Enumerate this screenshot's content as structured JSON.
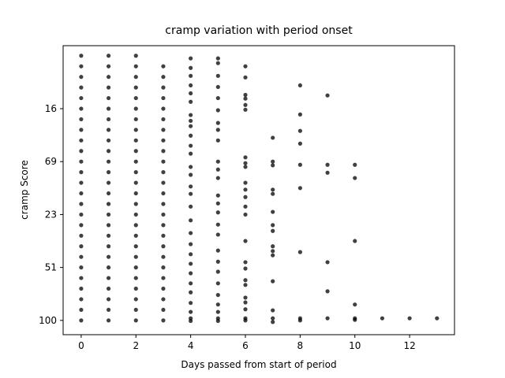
{
  "chart_data": {
    "type": "scatter",
    "title": "cramp variation with period onset",
    "x_label": "Days passed from start of period",
    "y_label": "cramp Score",
    "color": "#000000",
    "xlim": [
      -0.66,
      13.64
    ],
    "xticks": [
      0,
      2,
      4,
      6,
      8,
      10,
      12
    ],
    "ylim": [
      -0.27,
      5.19
    ],
    "yticks": [
      {
        "value": 0,
        "label": "100"
      },
      {
        "value": 1,
        "label": "51"
      },
      {
        "value": 2,
        "label": "23"
      },
      {
        "value": 3,
        "label": "69"
      },
      {
        "value": 4,
        "label": "16"
      }
    ],
    "points": [
      [
        0,
        0
      ],
      [
        0,
        0.2
      ],
      [
        0,
        0.4
      ],
      [
        0,
        0.6
      ],
      [
        0,
        0.8
      ],
      [
        0,
        1
      ],
      [
        0,
        1.2
      ],
      [
        0,
        1.4
      ],
      [
        0,
        1.6
      ],
      [
        0,
        1.8
      ],
      [
        0,
        2
      ],
      [
        0,
        2.2
      ],
      [
        0,
        2.4
      ],
      [
        0,
        2.6
      ],
      [
        0,
        2.8
      ],
      [
        0,
        3
      ],
      [
        0,
        3.2
      ],
      [
        0,
        3.4
      ],
      [
        0,
        3.6
      ],
      [
        0,
        3.8
      ],
      [
        0,
        4
      ],
      [
        0,
        4.2
      ],
      [
        0,
        4.4
      ],
      [
        0,
        4.6
      ],
      [
        0,
        4.8
      ],
      [
        0,
        5
      ],
      [
        1,
        0
      ],
      [
        1,
        0.2
      ],
      [
        1,
        0.4
      ],
      [
        1,
        0.6
      ],
      [
        1,
        0.8
      ],
      [
        1,
        1
      ],
      [
        1,
        1.2
      ],
      [
        1,
        1.4
      ],
      [
        1,
        1.6
      ],
      [
        1,
        1.8
      ],
      [
        1,
        2
      ],
      [
        1,
        2.2
      ],
      [
        1,
        2.4
      ],
      [
        1,
        2.6
      ],
      [
        1,
        2.8
      ],
      [
        1,
        3
      ],
      [
        1,
        3.2
      ],
      [
        1,
        3.4
      ],
      [
        1,
        3.6
      ],
      [
        1,
        3.8
      ],
      [
        1,
        4
      ],
      [
        1,
        4.2
      ],
      [
        1,
        4.4
      ],
      [
        1,
        4.6
      ],
      [
        1,
        4.8
      ],
      [
        1,
        5
      ],
      [
        2,
        0
      ],
      [
        2,
        0.2
      ],
      [
        2,
        0.4
      ],
      [
        2,
        0.6
      ],
      [
        2,
        0.8
      ],
      [
        2,
        1
      ],
      [
        2,
        1.2
      ],
      [
        2,
        1.4
      ],
      [
        2,
        1.6
      ],
      [
        2,
        1.8
      ],
      [
        2,
        2
      ],
      [
        2,
        2.2
      ],
      [
        2,
        2.4
      ],
      [
        2,
        2.6
      ],
      [
        2,
        2.8
      ],
      [
        2,
        3
      ],
      [
        2,
        3.2
      ],
      [
        2,
        3.4
      ],
      [
        2,
        3.6
      ],
      [
        2,
        3.8
      ],
      [
        2,
        4
      ],
      [
        2,
        4.2
      ],
      [
        2,
        4.4
      ],
      [
        2,
        4.6
      ],
      [
        2,
        4.8
      ],
      [
        2,
        5
      ],
      [
        3,
        0
      ],
      [
        3,
        0.2
      ],
      [
        3,
        0.4
      ],
      [
        3,
        0.6
      ],
      [
        3,
        0.8
      ],
      [
        3,
        1
      ],
      [
        3,
        1.2
      ],
      [
        3,
        1.4
      ],
      [
        3,
        1.6
      ],
      [
        3,
        1.8
      ],
      [
        3,
        2
      ],
      [
        3,
        2.2
      ],
      [
        3,
        2.4
      ],
      [
        3,
        2.6
      ],
      [
        3,
        2.8
      ],
      [
        3,
        3
      ],
      [
        3,
        3.2
      ],
      [
        3,
        3.4
      ],
      [
        3,
        3.6
      ],
      [
        3,
        3.8
      ],
      [
        3,
        4
      ],
      [
        3,
        4.2
      ],
      [
        3,
        4.4
      ],
      [
        3,
        4.6
      ],
      [
        3,
        4.8
      ],
      [
        4,
        4.95
      ],
      [
        4,
        4.77
      ],
      [
        4,
        4.62
      ],
      [
        4,
        4.44
      ],
      [
        4,
        4.29
      ],
      [
        4,
        4.13
      ],
      [
        4,
        3.88
      ],
      [
        4,
        3.77
      ],
      [
        4,
        3.67
      ],
      [
        4,
        3.49
      ],
      [
        4,
        3.3
      ],
      [
        4,
        3.15
      ],
      [
        4,
        2.9
      ],
      [
        4,
        2.75
      ],
      [
        4,
        2.53
      ],
      [
        4,
        2.39
      ],
      [
        4,
        2.15
      ],
      [
        4,
        1.89
      ],
      [
        4,
        1.65
      ],
      [
        4,
        1.44
      ],
      [
        4,
        1.25
      ],
      [
        4,
        1.07
      ],
      [
        4,
        0.89
      ],
      [
        4,
        0.7
      ],
      [
        4,
        0.53
      ],
      [
        4,
        0.33
      ],
      [
        4,
        0.16
      ],
      [
        4,
        0.04
      ],
      [
        4,
        -0.01
      ],
      [
        5,
        4.95
      ],
      [
        5,
        4.86
      ],
      [
        5,
        4.62
      ],
      [
        5,
        4.41
      ],
      [
        5,
        4.2
      ],
      [
        5,
        3.97
      ],
      [
        5,
        3.73
      ],
      [
        5,
        3.6
      ],
      [
        5,
        3.4
      ],
      [
        5,
        3.0
      ],
      [
        5,
        2.85
      ],
      [
        5,
        2.69
      ],
      [
        5,
        2.36
      ],
      [
        5,
        2.21
      ],
      [
        5,
        2.04
      ],
      [
        5,
        1.81
      ],
      [
        5,
        1.62
      ],
      [
        5,
        1.32
      ],
      [
        5,
        1.11
      ],
      [
        5,
        0.92
      ],
      [
        5,
        0.7
      ],
      [
        5,
        0.48
      ],
      [
        5,
        0.3
      ],
      [
        5,
        0.16
      ],
      [
        5,
        0.04
      ],
      [
        5,
        -0.01
      ],
      [
        6,
        4.8
      ],
      [
        6,
        4.59
      ],
      [
        6,
        4.26
      ],
      [
        6,
        4.19
      ],
      [
        6,
        4.07
      ],
      [
        6,
        3.98
      ],
      [
        6,
        3.08
      ],
      [
        6,
        2.97
      ],
      [
        6,
        2.9
      ],
      [
        6,
        2.6
      ],
      [
        6,
        2.47
      ],
      [
        6,
        2.33
      ],
      [
        6,
        2.15
      ],
      [
        6,
        2.0
      ],
      [
        6,
        1.5
      ],
      [
        6,
        1.1
      ],
      [
        6,
        0.98
      ],
      [
        6,
        0.76
      ],
      [
        6,
        0.67
      ],
      [
        6,
        0.43
      ],
      [
        6,
        0.34
      ],
      [
        6,
        0.21
      ],
      [
        6,
        0.04
      ],
      [
        6,
        0
      ],
      [
        7,
        3.45
      ],
      [
        7,
        3.0
      ],
      [
        7,
        2.93
      ],
      [
        7,
        2.47
      ],
      [
        7,
        2.39
      ],
      [
        7,
        2.05
      ],
      [
        7,
        1.8
      ],
      [
        7,
        1.69
      ],
      [
        7,
        1.4
      ],
      [
        7,
        1.31
      ],
      [
        7,
        1.23
      ],
      [
        7,
        0.74
      ],
      [
        7,
        0.19
      ],
      [
        7,
        0.04
      ],
      [
        7,
        -0.03
      ],
      [
        8,
        4.44
      ],
      [
        8,
        3.89
      ],
      [
        8,
        3.58
      ],
      [
        8,
        3.34
      ],
      [
        8,
        2.94
      ],
      [
        8,
        2.5
      ],
      [
        8,
        1.29
      ],
      [
        8,
        0.04
      ],
      [
        8,
        0
      ],
      [
        9,
        4.25
      ],
      [
        9,
        2.94
      ],
      [
        9,
        2.79
      ],
      [
        9,
        1.1
      ],
      [
        9,
        0.55
      ],
      [
        9,
        0.04
      ],
      [
        10,
        2.94
      ],
      [
        10,
        2.69
      ],
      [
        10,
        1.5
      ],
      [
        10,
        0.3
      ],
      [
        10,
        0.04
      ],
      [
        10,
        0.01
      ],
      [
        11,
        0.04
      ],
      [
        12,
        0.04
      ],
      [
        13,
        0.04
      ]
    ]
  }
}
